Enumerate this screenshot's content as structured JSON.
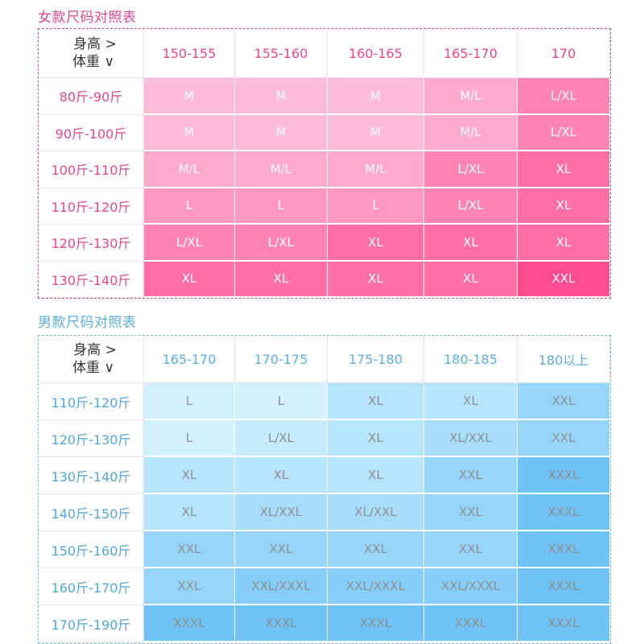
{
  "women": {
    "title": "女款尺码对照表",
    "corner_top": "身高  >",
    "corner_bottom": "体重  ∨",
    "heights": [
      "150-155",
      "155-160",
      "160-165",
      "165-170",
      "170"
    ],
    "rows": [
      {
        "weight": "80斤-90斤",
        "sizes": [
          "M",
          "M",
          "M",
          "M/L",
          "L/XL"
        ]
      },
      {
        "weight": "90斤-100斤",
        "sizes": [
          "M",
          "M",
          "M",
          "M/L",
          "L/XL"
        ]
      },
      {
        "weight": "100斤-110斤",
        "sizes": [
          "M/L",
          "M/L",
          "M/L",
          "L/XL",
          "XL"
        ]
      },
      {
        "weight": "110斤-120斤",
        "sizes": [
          "L",
          "L",
          "L",
          "L/XL",
          "XL"
        ]
      },
      {
        "weight": "120斤-130斤",
        "sizes": [
          "L/XL",
          "L/XL",
          "XL",
          "XL",
          "XL"
        ]
      },
      {
        "weight": "130斤-140斤",
        "sizes": [
          "XL",
          "XL",
          "XL",
          "XL",
          "XXL"
        ]
      }
    ],
    "size_colors": {
      "M": "#ffbcd7",
      "M/L": "#ffa9cb",
      "L": "#ff99c1",
      "L/XL": "#ff84b4",
      "XL": "#ff6fa6",
      "XXL": "#ff4b8f"
    }
  },
  "men": {
    "title": "男款尺码对照表",
    "corner_top": "身高  >",
    "corner_bottom": "体重  ∨",
    "heights": [
      "165-170",
      "170-175",
      "175-180",
      "180-185",
      "180以上"
    ],
    "rows": [
      {
        "weight": "110斤-120斤",
        "sizes": [
          "L",
          "L",
          "XL",
          "XL",
          "XXL"
        ]
      },
      {
        "weight": "120斤-130斤",
        "sizes": [
          "L",
          "L/XL",
          "XL",
          "XL/XXL",
          "XXL"
        ]
      },
      {
        "weight": "130斤-140斤",
        "sizes": [
          "XL",
          "XL",
          "XL",
          "XXL",
          "XXXL"
        ]
      },
      {
        "weight": "140斤-150斤",
        "sizes": [
          "XL",
          "XL/XXL",
          "XL/XXL",
          "XXL",
          "XXXL"
        ]
      },
      {
        "weight": "150斤-160斤",
        "sizes": [
          "XXL",
          "XXL",
          "XXL",
          "XXL",
          "XXXL"
        ]
      },
      {
        "weight": "160斤-170斤",
        "sizes": [
          "XXL",
          "XXL/XXXL",
          "XXL/XXXL",
          "XXL/XXXL",
          "XXXL"
        ]
      },
      {
        "weight": "170斤-190斤",
        "sizes": [
          "XXXL",
          "XXXL",
          "XXXL",
          "XXXL",
          "XXXL"
        ]
      }
    ],
    "size_colors": {
      "L": "#d2f0fd",
      "L/XL": "#c4eafc",
      "XL": "#b6e4fc",
      "XL/XXL": "#a7ddfb",
      "XXL": "#95d5fa",
      "XXL/XXXL": "#86cef9",
      "XXXL": "#70c3f7"
    }
  }
}
